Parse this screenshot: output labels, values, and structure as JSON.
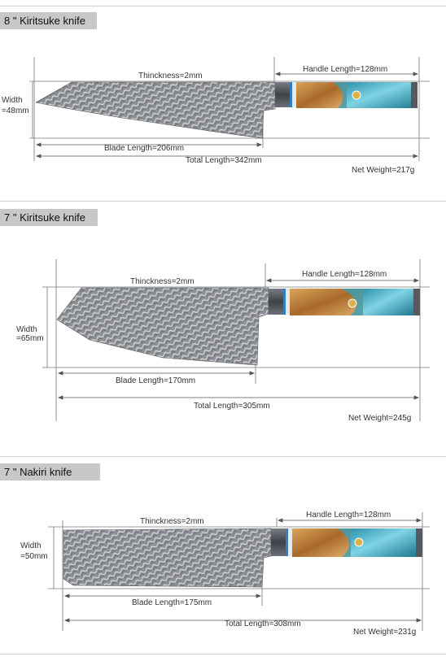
{
  "knives": [
    {
      "title": "8 \" Kiritsuke knife",
      "thickness": "Thinckness=2mm",
      "handle_length": "Handle Length=128mm",
      "width_line1": "Width",
      "width_line2": "=48mm",
      "blade_length": "Blade Length=206mm",
      "total_length": "Total Length=342mm",
      "net_weight": "Net Weight=217g"
    },
    {
      "title": "7 \" Kiritsuke knife",
      "thickness": "Thinckness=2mm",
      "handle_length": "Handle Length=128mm",
      "width_line1": "Width",
      "width_line2": "=65mm",
      "blade_length": "Blade Length=170mm",
      "total_length": "Total Length=305mm",
      "net_weight": "Net Weight=245g"
    },
    {
      "title": "7 \" Nakiri knife",
      "thickness": "Thinckness=2mm",
      "handle_length": "Handle Length=128mm",
      "width_line1": "Width",
      "width_line2": "=50mm",
      "blade_length": "Blade Length=175mm",
      "total_length": "Total Length=308mm",
      "net_weight": "Net Weight=231g"
    }
  ],
  "colors": {
    "title_bg": "#c8c8c8",
    "blade": "#8e9296",
    "wood": "#c58a3c",
    "resin": "#3fa7c0",
    "bolster": "#4a4e55"
  }
}
